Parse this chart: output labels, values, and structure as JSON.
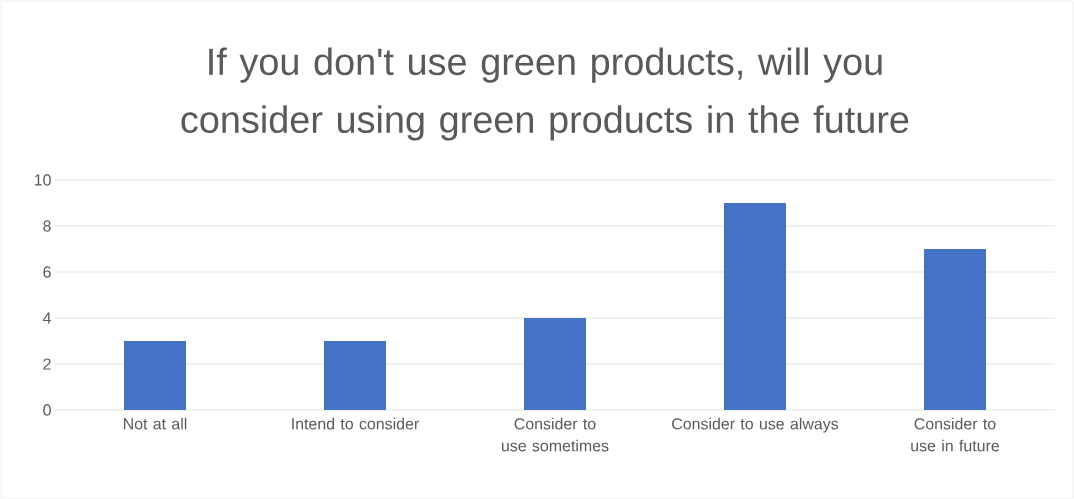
{
  "chart_data": {
    "type": "bar",
    "title": "If you don't use green products, will you consider using green products in the future",
    "categories": [
      "Not at all",
      "Intend to consider",
      "Consider to use sometimes",
      "Consider to use always",
      "Consider to use in future"
    ],
    "values": [
      3,
      3,
      4,
      9,
      7
    ],
    "color": "#4472c4",
    "ylim": [
      0,
      10
    ],
    "yticks": [
      0,
      2,
      4,
      6,
      8,
      10
    ],
    "grid": "y"
  }
}
